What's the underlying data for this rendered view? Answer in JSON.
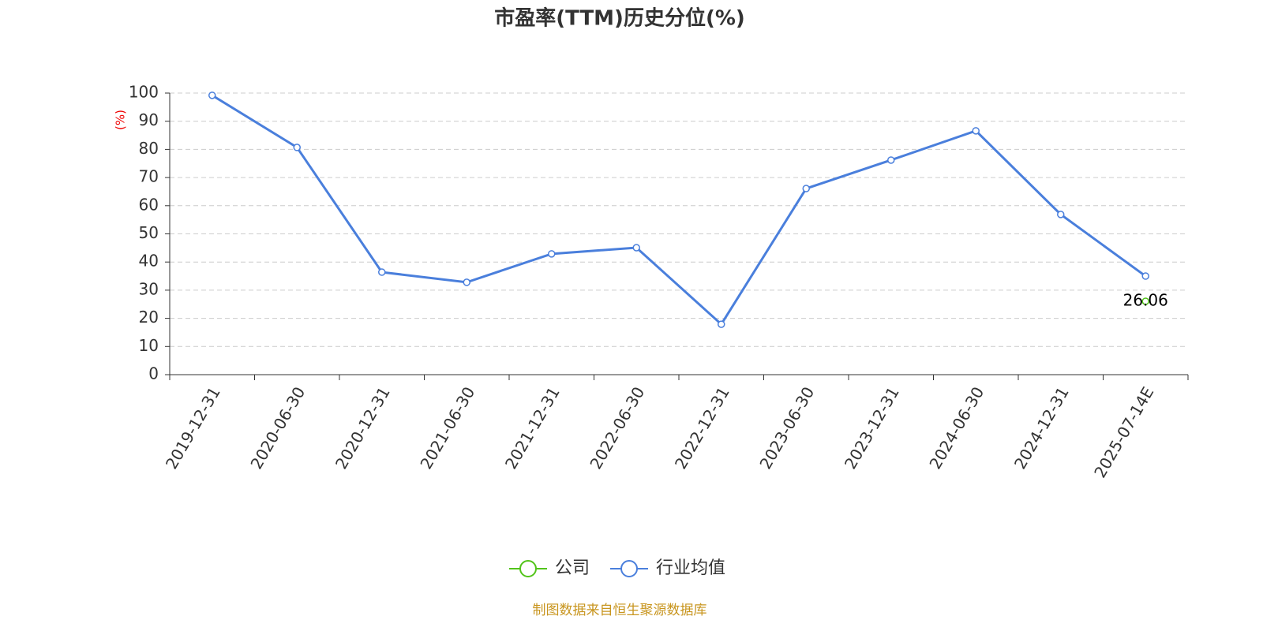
{
  "chart_data": {
    "type": "line",
    "title": "市盈率(TTM)历史分位(%)",
    "y_label": "(%)",
    "categories": [
      "2019-12-31",
      "2020-06-30",
      "2020-12-31",
      "2021-06-30",
      "2021-12-31",
      "2022-06-30",
      "2022-12-31",
      "2023-06-30",
      "2023-12-31",
      "2024-06-30",
      "2024-12-31",
      "2025-07-14E"
    ],
    "series": [
      {
        "name": "公司",
        "color": "#52c41a",
        "labels": true,
        "values": [
          null,
          null,
          null,
          null,
          null,
          null,
          null,
          null,
          null,
          null,
          null,
          26.06
        ]
      },
      {
        "name": "行业均值",
        "color": "#4a7fdc",
        "labels": false,
        "values": [
          99.2,
          80.7,
          36.4,
          32.8,
          42.9,
          45.1,
          17.9,
          66.1,
          76.2,
          86.6,
          56.9,
          35.0
        ]
      }
    ],
    "ylim": [
      0,
      100
    ],
    "yticks": [
      0,
      10,
      20,
      30,
      40,
      50,
      60,
      70,
      80,
      90,
      100
    ],
    "grid": true,
    "legend": "bottom",
    "source": "制图数据来自恒生聚源数据库"
  }
}
